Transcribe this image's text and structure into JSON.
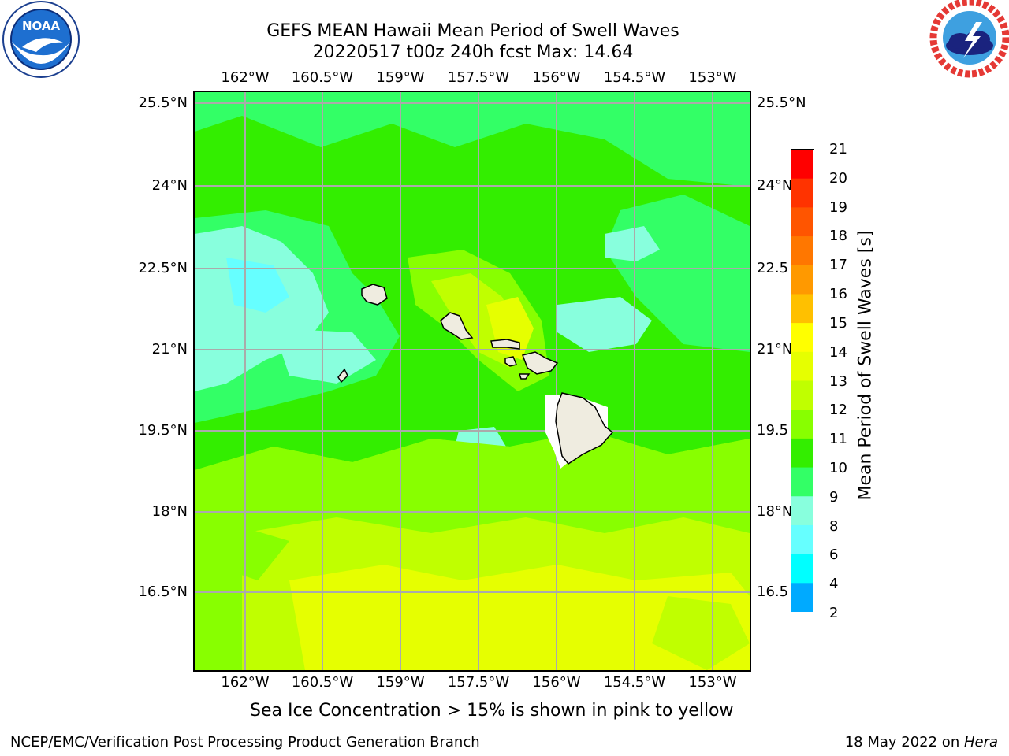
{
  "header": {
    "title_line1": "GEFS MEAN Hawaii Mean Period of Swell Waves",
    "title_line2": "20220517 t00z 240h fcst   Max: 14.64"
  },
  "logos": {
    "left": {
      "name": "noaa-logo",
      "text": "NOAA",
      "ring_text": "NATIONAL OCEANIC AND ATMOSPHERIC ADMINISTRATION · U.S. DEPARTMENT OF COMMERCE"
    },
    "right": {
      "name": "nws-logo",
      "ring_text": "NATIONAL WEATHER SERVICE"
    }
  },
  "map": {
    "lon_ticks": [
      "162°W",
      "160.5°W",
      "159°W",
      "157.5°W",
      "156°W",
      "154.5°W",
      "153°W"
    ],
    "lat_ticks_left": [
      "25.5°N",
      "24°N",
      "22.5°N",
      "21°N",
      "19.5°N",
      "18°N",
      "16.5°N"
    ],
    "lat_ticks_right": [
      "25.5°N",
      "24°N",
      "22.5",
      "21°N",
      "19.5",
      "18°N",
      "16.5"
    ],
    "grid": true
  },
  "colorbar": {
    "title": "Mean Period of Swell Waves [s]",
    "levels": [
      "21",
      "20",
      "19",
      "18",
      "17",
      "16",
      "15",
      "14",
      "13",
      "12",
      "11",
      "10",
      "9",
      "8",
      "6",
      "4",
      "2"
    ],
    "colors": [
      "#ff0000",
      "#ff3300",
      "#ff5500",
      "#ff7700",
      "#ff9900",
      "#ffc000",
      "#ffff00",
      "#e6ff00",
      "#c0ff00",
      "#88ff00",
      "#33ee00",
      "#33ff66",
      "#88ffdd",
      "#66ffff",
      "#00ffff",
      "#00aaff",
      "#0066ff",
      "#0000ff"
    ]
  },
  "note": "Sea Ice Concentration > 15% is shown in pink to yellow",
  "footer": {
    "left": "NCEP/EMC/Verification Post Processing Product Generation Branch",
    "right_date": "18 May 2022 on ",
    "right_host": "Hera"
  }
}
